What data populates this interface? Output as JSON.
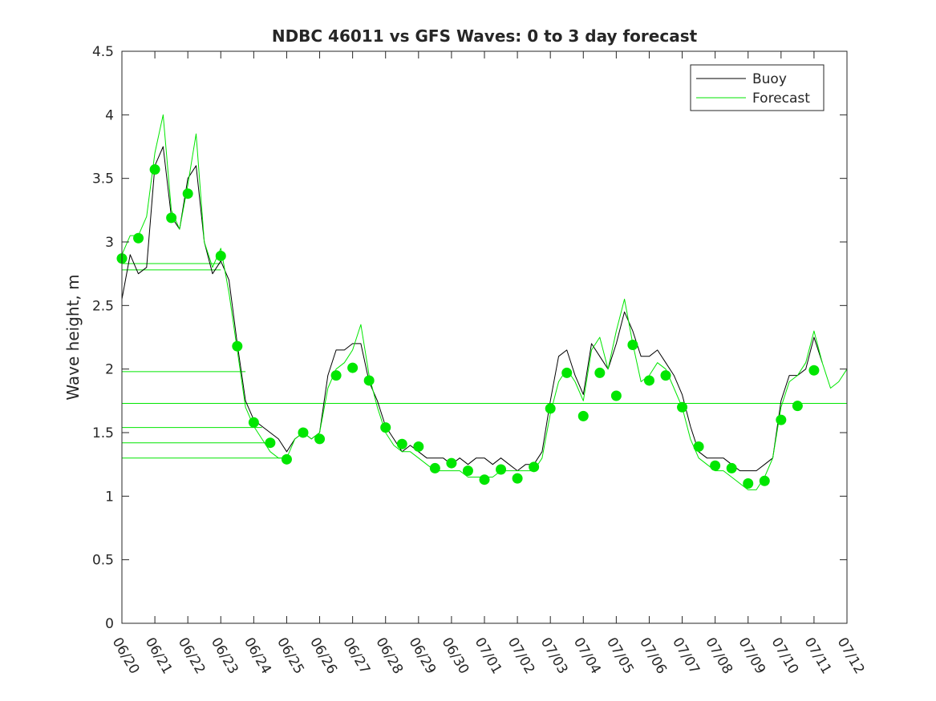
{
  "chart_data": {
    "type": "line",
    "title": "NDBC 46011 vs GFS Waves: 0 to 3 day forecast",
    "xlabel": "",
    "ylabel": "Wave height, m",
    "xlim": [
      0,
      22
    ],
    "ylim": [
      0,
      4.5
    ],
    "x_tick_labels": [
      "06/20",
      "06/21",
      "06/22",
      "06/23",
      "06/24",
      "06/25",
      "06/26",
      "06/27",
      "06/28",
      "06/29",
      "06/30",
      "07/01",
      "07/02",
      "07/03",
      "07/04",
      "07/05",
      "07/06",
      "07/07",
      "07/08",
      "07/09",
      "07/10",
      "07/11",
      "07/12"
    ],
    "y_ticks": [
      0,
      0.5,
      1,
      1.5,
      2,
      2.5,
      3,
      3.5,
      4,
      4.5
    ],
    "y_tick_labels": [
      "0",
      "0.5",
      "1",
      "1.5",
      "2",
      "2.5",
      "3",
      "3.5",
      "4",
      "4.5"
    ],
    "grid": false,
    "legend": {
      "position": "top-right",
      "entries": [
        "Buoy",
        "Forecast"
      ]
    },
    "series": [
      {
        "name": "Buoy",
        "color": "#000000",
        "x_units": "days since 06/20",
        "points": [
          [
            0,
            2.55
          ],
          [
            0.25,
            2.9
          ],
          [
            0.5,
            2.75
          ],
          [
            0.75,
            2.8
          ],
          [
            1,
            3.6
          ],
          [
            1.25,
            3.75
          ],
          [
            1.5,
            3.2
          ],
          [
            1.75,
            3.1
          ],
          [
            2,
            3.5
          ],
          [
            2.25,
            3.6
          ],
          [
            2.5,
            3.0
          ],
          [
            2.75,
            2.75
          ],
          [
            3,
            2.85
          ],
          [
            3.25,
            2.7
          ],
          [
            3.5,
            2.2
          ],
          [
            3.75,
            1.75
          ],
          [
            4,
            1.6
          ],
          [
            4.25,
            1.55
          ],
          [
            4.5,
            1.5
          ],
          [
            4.75,
            1.45
          ],
          [
            5,
            1.35
          ],
          [
            5.25,
            1.45
          ],
          [
            5.5,
            1.5
          ],
          [
            5.75,
            1.45
          ],
          [
            6,
            1.5
          ],
          [
            6.25,
            1.95
          ],
          [
            6.5,
            2.15
          ],
          [
            6.75,
            2.15
          ],
          [
            7,
            2.2
          ],
          [
            7.25,
            2.2
          ],
          [
            7.5,
            1.9
          ],
          [
            7.75,
            1.75
          ],
          [
            8,
            1.55
          ],
          [
            8.25,
            1.45
          ],
          [
            8.5,
            1.35
          ],
          [
            8.75,
            1.4
          ],
          [
            9,
            1.35
          ],
          [
            9.25,
            1.3
          ],
          [
            9.5,
            1.3
          ],
          [
            9.75,
            1.3
          ],
          [
            10,
            1.25
          ],
          [
            10.25,
            1.3
          ],
          [
            10.5,
            1.25
          ],
          [
            10.75,
            1.3
          ],
          [
            11,
            1.3
          ],
          [
            11.25,
            1.25
          ],
          [
            11.5,
            1.3
          ],
          [
            11.75,
            1.25
          ],
          [
            12,
            1.2
          ],
          [
            12.25,
            1.25
          ],
          [
            12.5,
            1.25
          ],
          [
            12.75,
            1.35
          ],
          [
            13,
            1.75
          ],
          [
            13.25,
            2.1
          ],
          [
            13.5,
            2.15
          ],
          [
            13.75,
            1.95
          ],
          [
            14,
            1.8
          ],
          [
            14.25,
            2.2
          ],
          [
            14.5,
            2.1
          ],
          [
            14.75,
            2.0
          ],
          [
            15,
            2.2
          ],
          [
            15.25,
            2.45
          ],
          [
            15.5,
            2.3
          ],
          [
            15.75,
            2.1
          ],
          [
            16,
            2.1
          ],
          [
            16.25,
            2.15
          ],
          [
            16.5,
            2.05
          ],
          [
            16.75,
            1.95
          ],
          [
            17,
            1.8
          ],
          [
            17.25,
            1.55
          ],
          [
            17.5,
            1.35
          ],
          [
            17.75,
            1.3
          ],
          [
            18,
            1.3
          ],
          [
            18.25,
            1.3
          ],
          [
            18.5,
            1.25
          ],
          [
            18.75,
            1.2
          ],
          [
            19,
            1.2
          ],
          [
            19.25,
            1.2
          ],
          [
            19.5,
            1.25
          ],
          [
            19.75,
            1.3
          ],
          [
            20,
            1.75
          ],
          [
            20.25,
            1.95
          ],
          [
            20.5,
            1.95
          ],
          [
            20.75,
            2.0
          ],
          [
            21,
            2.25
          ],
          [
            21.25,
            2.05
          ]
        ]
      },
      {
        "name": "Forecast",
        "color": "#00e600",
        "x_units": "days since 06/20",
        "points": [
          [
            0,
            2.9
          ],
          [
            0.25,
            3.05
          ],
          [
            0.5,
            3.05
          ],
          [
            0.75,
            3.2
          ],
          [
            1,
            3.7
          ],
          [
            1.25,
            4.0
          ],
          [
            1.5,
            3.25
          ],
          [
            1.75,
            3.1
          ],
          [
            2,
            3.45
          ],
          [
            2.25,
            3.85
          ],
          [
            2.5,
            3.0
          ],
          [
            2.75,
            2.8
          ],
          [
            3,
            2.95
          ],
          [
            3.25,
            2.6
          ],
          [
            3.5,
            2.15
          ],
          [
            3.75,
            1.7
          ],
          [
            4,
            1.55
          ],
          [
            4.25,
            1.45
          ],
          [
            4.5,
            1.35
          ],
          [
            4.75,
            1.3
          ],
          [
            5,
            1.3
          ],
          [
            5.25,
            1.45
          ],
          [
            5.5,
            1.5
          ],
          [
            5.75,
            1.45
          ],
          [
            6,
            1.5
          ],
          [
            6.25,
            1.85
          ],
          [
            6.5,
            2.0
          ],
          [
            6.75,
            2.05
          ],
          [
            7,
            2.15
          ],
          [
            7.25,
            2.35
          ],
          [
            7.5,
            1.95
          ],
          [
            7.75,
            1.7
          ],
          [
            8,
            1.5
          ],
          [
            8.25,
            1.4
          ],
          [
            8.5,
            1.35
          ],
          [
            8.75,
            1.35
          ],
          [
            9,
            1.3
          ],
          [
            9.25,
            1.25
          ],
          [
            9.5,
            1.2
          ],
          [
            9.75,
            1.2
          ],
          [
            10,
            1.2
          ],
          [
            10.25,
            1.2
          ],
          [
            10.5,
            1.15
          ],
          [
            10.75,
            1.15
          ],
          [
            11,
            1.15
          ],
          [
            11.25,
            1.15
          ],
          [
            11.5,
            1.2
          ],
          [
            11.75,
            1.2
          ],
          [
            12,
            1.2
          ],
          [
            12.25,
            1.2
          ],
          [
            12.5,
            1.2
          ],
          [
            12.75,
            1.3
          ],
          [
            13,
            1.65
          ],
          [
            13.25,
            1.9
          ],
          [
            13.5,
            2.0
          ],
          [
            13.75,
            1.9
          ],
          [
            14,
            1.75
          ],
          [
            14.25,
            2.15
          ],
          [
            14.5,
            2.25
          ],
          [
            14.75,
            2.0
          ],
          [
            15,
            2.3
          ],
          [
            15.25,
            2.55
          ],
          [
            15.5,
            2.2
          ],
          [
            15.75,
            1.9
          ],
          [
            16,
            1.95
          ],
          [
            16.25,
            2.05
          ],
          [
            16.5,
            2.0
          ],
          [
            16.75,
            1.85
          ],
          [
            17,
            1.7
          ],
          [
            17.25,
            1.45
          ],
          [
            17.5,
            1.3
          ],
          [
            17.75,
            1.25
          ],
          [
            18,
            1.2
          ],
          [
            18.25,
            1.2
          ],
          [
            18.5,
            1.15
          ],
          [
            18.75,
            1.1
          ],
          [
            19,
            1.05
          ],
          [
            19.25,
            1.05
          ],
          [
            19.5,
            1.15
          ],
          [
            19.75,
            1.3
          ],
          [
            20,
            1.7
          ],
          [
            20.25,
            1.9
          ],
          [
            20.5,
            1.95
          ],
          [
            20.75,
            2.05
          ],
          [
            21,
            2.3
          ],
          [
            21.25,
            2.05
          ],
          [
            21.5,
            1.85
          ],
          [
            21.75,
            1.9
          ],
          [
            22,
            2.0
          ]
        ]
      }
    ],
    "forecast_markers": {
      "color": "#00e600",
      "points": [
        [
          0,
          2.87
        ],
        [
          0.5,
          3.03
        ],
        [
          1,
          3.57
        ],
        [
          1.5,
          3.19
        ],
        [
          2,
          3.38
        ],
        [
          3,
          2.89
        ],
        [
          3.5,
          2.18
        ],
        [
          4,
          1.58
        ],
        [
          4.5,
          1.42
        ],
        [
          5,
          1.29
        ],
        [
          5.5,
          1.5
        ],
        [
          6,
          1.45
        ],
        [
          6.5,
          1.95
        ],
        [
          7,
          2.01
        ],
        [
          7.5,
          1.91
        ],
        [
          8,
          1.54
        ],
        [
          8.5,
          1.41
        ],
        [
          9,
          1.39
        ],
        [
          9.5,
          1.22
        ],
        [
          10,
          1.26
        ],
        [
          10.5,
          1.2
        ],
        [
          11,
          1.13
        ],
        [
          11.5,
          1.21
        ],
        [
          12,
          1.14
        ],
        [
          12.5,
          1.23
        ],
        [
          13,
          1.69
        ],
        [
          13.5,
          1.97
        ],
        [
          14,
          1.63
        ],
        [
          14.5,
          1.97
        ],
        [
          15,
          1.79
        ],
        [
          15.5,
          2.19
        ],
        [
          16,
          1.91
        ],
        [
          16.5,
          1.95
        ],
        [
          17,
          1.7
        ],
        [
          17.5,
          1.39
        ],
        [
          18,
          1.24
        ],
        [
          18.5,
          1.22
        ],
        [
          19,
          1.1
        ],
        [
          19.5,
          1.12
        ],
        [
          20,
          1.6
        ],
        [
          20.5,
          1.71
        ],
        [
          21,
          1.99
        ]
      ]
    },
    "reference_lines": [
      {
        "x_end": 3.0,
        "y": 2.83
      },
      {
        "x_end": 3.0,
        "y": 2.78
      },
      {
        "x_end": 3.75,
        "y": 1.98
      },
      {
        "x_end": 22,
        "y": 1.73
      },
      {
        "x_end": 4.25,
        "y": 1.54
      },
      {
        "x_end": 4.5,
        "y": 1.42
      },
      {
        "x_end": 5.0,
        "y": 1.3
      }
    ]
  }
}
